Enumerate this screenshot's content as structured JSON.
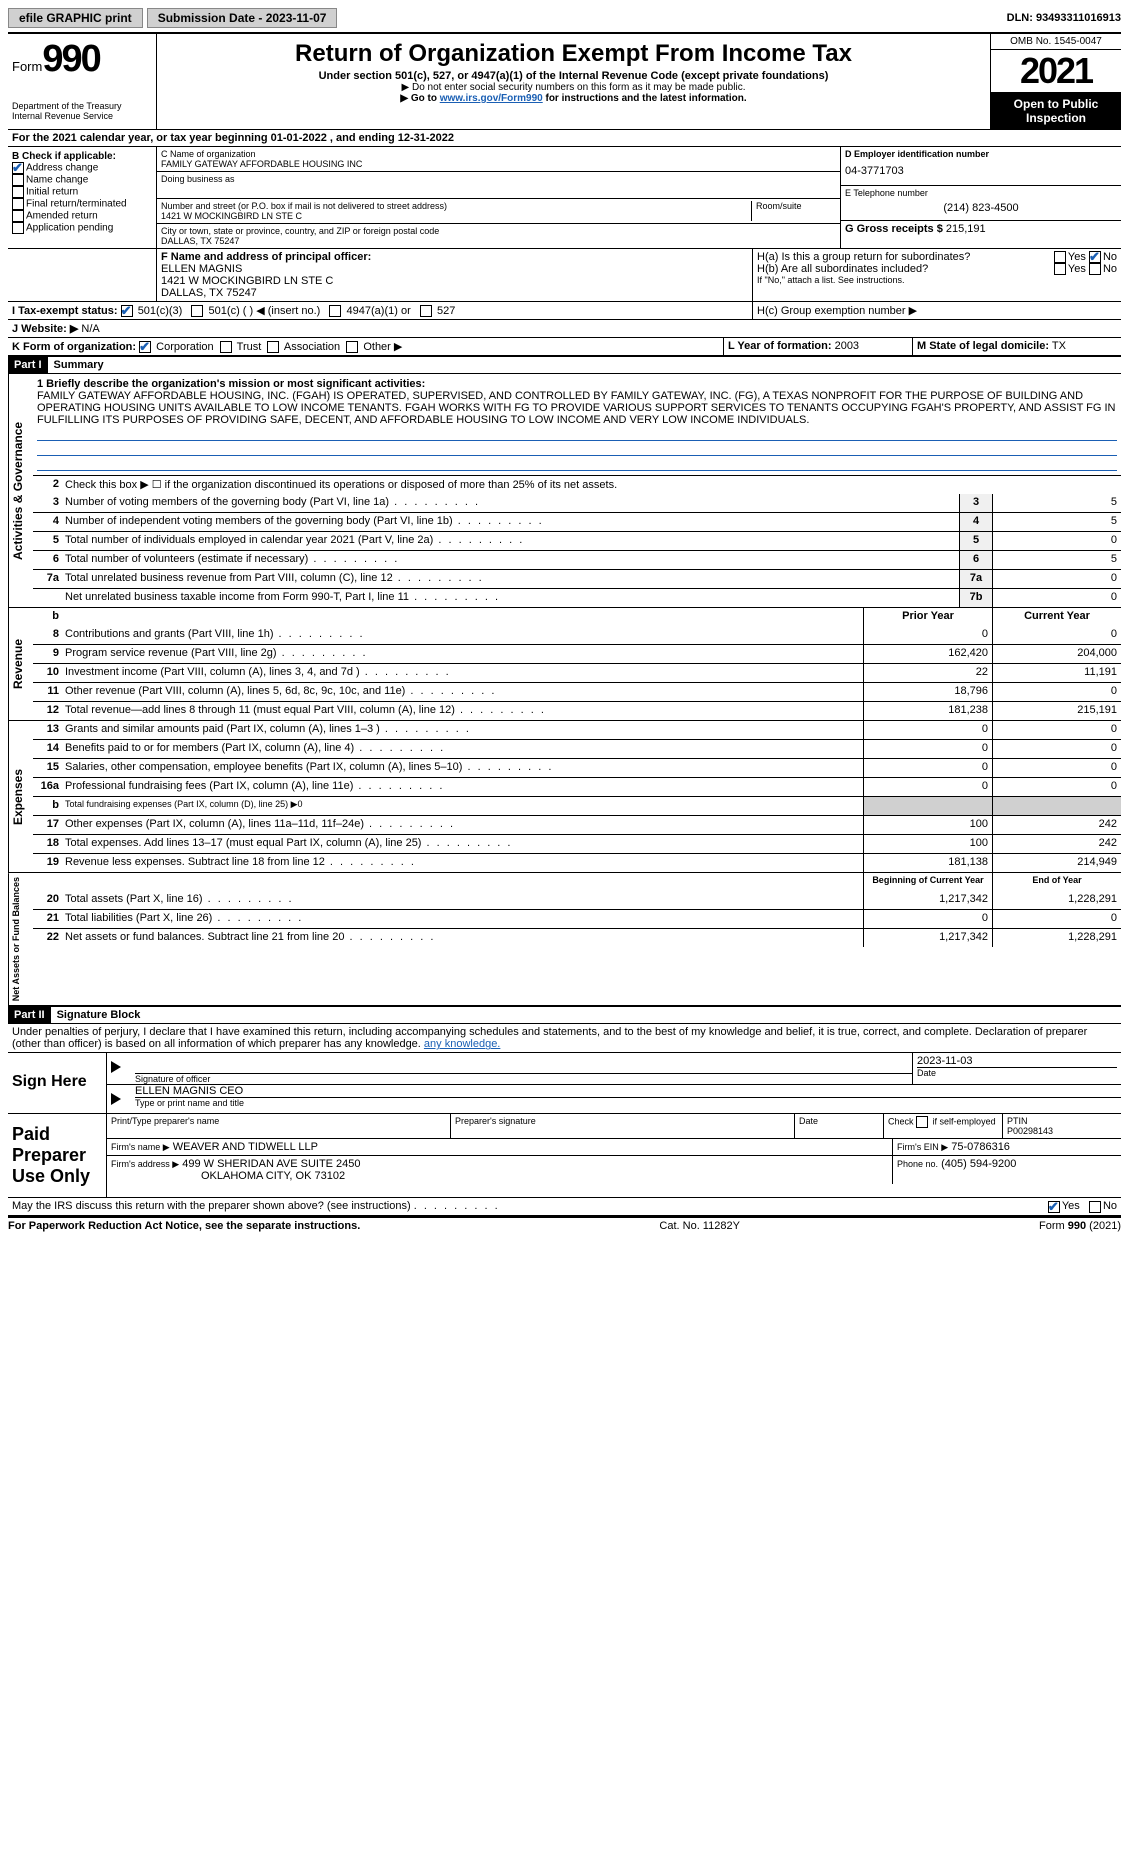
{
  "topbar": {
    "efile": "efile GRAPHIC print",
    "submission": "Submission Date - 2023-11-07",
    "dln": "DLN: 93493311016913"
  },
  "header": {
    "form_word": "Form",
    "form_num": "990",
    "dept": "Department of the Treasury",
    "irs": "Internal Revenue Service",
    "title": "Return of Organization Exempt From Income Tax",
    "subtitle": "Under section 501(c), 527, or 4947(a)(1) of the Internal Revenue Code (except private foundations)",
    "note1": "▶ Do not enter social security numbers on this form as it may be made public.",
    "note2_pre": "▶ Go to ",
    "note2_link": "www.irs.gov/Form990",
    "note2_post": " for instructions and the latest information.",
    "omb": "OMB No. 1545-0047",
    "year": "2021",
    "open": "Open to Public Inspection"
  },
  "lineA": "For the 2021 calendar year, or tax year beginning 01-01-2022   , and ending 12-31-2022",
  "boxB": {
    "title": "B Check if applicable:",
    "items": [
      "Address change",
      "Name change",
      "Initial return",
      "Final return/terminated",
      "Amended return",
      "Application pending"
    ],
    "checked_idx": 0
  },
  "boxC": {
    "name_label": "C Name of organization",
    "name": "FAMILY GATEWAY AFFORDABLE HOUSING INC",
    "dba_label": "Doing business as",
    "street_label": "Number and street (or P.O. box if mail is not delivered to street address)",
    "room_label": "Room/suite",
    "street": "1421 W MOCKINGBIRD LN STE C",
    "city_label": "City or town, state or province, country, and ZIP or foreign postal code",
    "city": "DALLAS, TX  75247"
  },
  "boxD": {
    "label": "D Employer identification number",
    "value": "04-3771703"
  },
  "boxE": {
    "label": "E Telephone number",
    "value": "(214) 823-4500"
  },
  "boxG": {
    "label": "G Gross receipts $",
    "value": "215,191"
  },
  "boxF": {
    "label": "F  Name and address of principal officer:",
    "name": "ELLEN MAGNIS",
    "addr1": "1421 W MOCKINGBIRD LN STE C",
    "addr2": "DALLAS, TX  75247"
  },
  "boxH": {
    "ha": "H(a)  Is this a group return for subordinates?",
    "hb": "H(b)  Are all subordinates included?",
    "hb_note": "If \"No,\" attach a list. See instructions.",
    "hc": "H(c)  Group exemption number ▶",
    "yes": "Yes",
    "no": "No"
  },
  "taxI": {
    "label": "I  Tax-exempt status:",
    "opts": [
      "501(c)(3)",
      "501(c) (  ) ◀ (insert no.)",
      "4947(a)(1) or",
      "527"
    ]
  },
  "lineJ": {
    "label": "J   Website: ▶",
    "value": "N/A"
  },
  "lineK": {
    "label": "K Form of organization:",
    "opts": [
      "Corporation",
      "Trust",
      "Association",
      "Other ▶"
    ]
  },
  "lineL": {
    "label": "L Year of formation:",
    "value": "2003"
  },
  "lineM": {
    "label": "M State of legal domicile:",
    "value": "TX"
  },
  "part1": {
    "tag": "Part I",
    "title": "Summary",
    "vert1": "Activities & Governance",
    "line1_label": "1  Briefly describe the organization's mission or most significant activities:",
    "mission": "FAMILY GATEWAY AFFORDABLE HOUSING, INC. (FGAH) IS OPERATED, SUPERVISED, AND CONTROLLED BY FAMILY GATEWAY, INC. (FG), A TEXAS NONPROFIT FOR THE PURPOSE OF BUILDING AND OPERATING HOUSING UNITS AVAILABLE TO LOW INCOME TENANTS. FGAH WORKS WITH FG TO PROVIDE VARIOUS SUPPORT SERVICES TO TENANTS OCCUPYING FGAH'S PROPERTY, AND ASSIST FG IN FULFILLING ITS PURPOSES OF PROVIDING SAFE, DECENT, AND AFFORDABLE HOUSING TO LOW INCOME AND VERY LOW INCOME INDIVIDUALS.",
    "line2": "Check this box ▶ ☐  if the organization discontinued its operations or disposed of more than 25% of its net assets.",
    "rows_gov": [
      {
        "n": "3",
        "t": "Number of voting members of the governing body (Part VI, line 1a)",
        "b": "3",
        "v": "5"
      },
      {
        "n": "4",
        "t": "Number of independent voting members of the governing body (Part VI, line 1b)",
        "b": "4",
        "v": "5"
      },
      {
        "n": "5",
        "t": "Total number of individuals employed in calendar year 2021 (Part V, line 2a)",
        "b": "5",
        "v": "0"
      },
      {
        "n": "6",
        "t": "Total number of volunteers (estimate if necessary)",
        "b": "6",
        "v": "5"
      },
      {
        "n": "7a",
        "t": "Total unrelated business revenue from Part VIII, column (C), line 12",
        "b": "7a",
        "v": "0"
      },
      {
        "n": "",
        "t": "Net unrelated business taxable income from Form 990-T, Part I, line 11",
        "b": "7b",
        "v": "0"
      }
    ],
    "col_hdr": {
      "b": "b",
      "prior": "Prior Year",
      "current": "Current Year"
    },
    "vert2": "Revenue",
    "rows_rev": [
      {
        "n": "8",
        "t": "Contributions and grants (Part VIII, line 1h)",
        "p": "0",
        "c": "0"
      },
      {
        "n": "9",
        "t": "Program service revenue (Part VIII, line 2g)",
        "p": "162,420",
        "c": "204,000"
      },
      {
        "n": "10",
        "t": "Investment income (Part VIII, column (A), lines 3, 4, and 7d )",
        "p": "22",
        "c": "11,191"
      },
      {
        "n": "11",
        "t": "Other revenue (Part VIII, column (A), lines 5, 6d, 8c, 9c, 10c, and 11e)",
        "p": "18,796",
        "c": "0"
      },
      {
        "n": "12",
        "t": "Total revenue—add lines 8 through 11 (must equal Part VIII, column (A), line 12)",
        "p": "181,238",
        "c": "215,191"
      }
    ],
    "vert3": "Expenses",
    "rows_exp": [
      {
        "n": "13",
        "t": "Grants and similar amounts paid (Part IX, column (A), lines 1–3 )",
        "p": "0",
        "c": "0"
      },
      {
        "n": "14",
        "t": "Benefits paid to or for members (Part IX, column (A), line 4)",
        "p": "0",
        "c": "0"
      },
      {
        "n": "15",
        "t": "Salaries, other compensation, employee benefits (Part IX, column (A), lines 5–10)",
        "p": "0",
        "c": "0"
      },
      {
        "n": "16a",
        "t": "Professional fundraising fees (Part IX, column (A), line 11e)",
        "p": "0",
        "c": "0"
      },
      {
        "n": "b",
        "t": "Total fundraising expenses (Part IX, column (D), line 25) ▶0",
        "p": "",
        "c": "",
        "grey": true,
        "small": true
      },
      {
        "n": "17",
        "t": "Other expenses (Part IX, column (A), lines 11a–11d, 11f–24e)",
        "p": "100",
        "c": "242"
      },
      {
        "n": "18",
        "t": "Total expenses. Add lines 13–17 (must equal Part IX, column (A), line 25)",
        "p": "100",
        "c": "242"
      },
      {
        "n": "19",
        "t": "Revenue less expenses. Subtract line 18 from line 12",
        "p": "181,138",
        "c": "214,949"
      }
    ],
    "vert4": "Net Assets or Fund Balances",
    "col_hdr2": {
      "prior": "Beginning of Current Year",
      "current": "End of Year"
    },
    "rows_net": [
      {
        "n": "20",
        "t": "Total assets (Part X, line 16)",
        "p": "1,217,342",
        "c": "1,228,291"
      },
      {
        "n": "21",
        "t": "Total liabilities (Part X, line 26)",
        "p": "0",
        "c": "0"
      },
      {
        "n": "22",
        "t": "Net assets or fund balances. Subtract line 21 from line 20",
        "p": "1,217,342",
        "c": "1,228,291"
      }
    ]
  },
  "part2": {
    "tag": "Part II",
    "title": "Signature Block",
    "decl": "Under penalties of perjury, I declare that I have examined this return, including accompanying schedules and statements, and to the best of my knowledge and belief, it is true, correct, and complete. Declaration of preparer (other than officer) is based on all information of which preparer has any knowledge."
  },
  "sign": {
    "here": "Sign Here",
    "sig_label": "Signature of officer",
    "date_label": "Date",
    "date": "2023-11-03",
    "name": "ELLEN MAGNIS CEO",
    "name_label": "Type or print name and title"
  },
  "paid": {
    "title": "Paid Preparer Use Only",
    "h1": "Print/Type preparer's name",
    "h2": "Preparer's signature",
    "h3": "Date",
    "h4_pre": "Check",
    "h4_post": "if self-employed",
    "h5": "PTIN",
    "ptin": "P00298143",
    "firm_label": "Firm's name    ▶",
    "firm": "WEAVER AND TIDWELL LLP",
    "ein_label": "Firm's EIN ▶",
    "ein": "75-0786316",
    "addr_label": "Firm's address ▶",
    "addr1": "499 W SHERIDAN AVE SUITE 2450",
    "addr2": "OKLAHOMA CITY, OK  73102",
    "phone_label": "Phone no.",
    "phone": "(405) 594-9200"
  },
  "discuss": {
    "text": "May the IRS discuss this return with the preparer shown above? (see instructions)",
    "yes": "Yes",
    "no": "No"
  },
  "footer": {
    "left": "For Paperwork Reduction Act Notice, see the separate instructions.",
    "mid": "Cat. No. 11282Y",
    "right": "Form 990 (2021)"
  }
}
